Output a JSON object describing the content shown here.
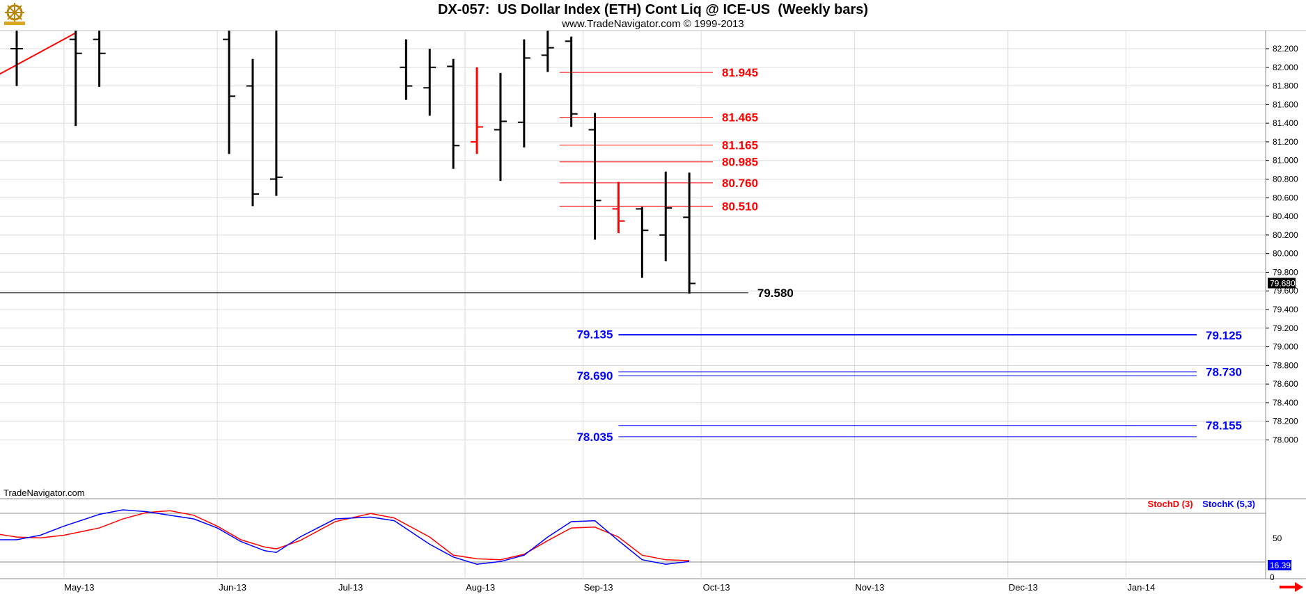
{
  "header": {
    "title": "DX-057:  US Dollar Index (ETH) Cont Liq @ ICE-US  (Weekly bars)",
    "subtitle": "www.TradeNavigator.com © 1999-2013",
    "watermark": "TradeNavigator.com"
  },
  "icons": {
    "logo": "ship-wheel-logo-icon",
    "scroll": "right-arrow-icon"
  },
  "colors": {
    "bar_up": "#000000",
    "bar_highlight": "#ff0000",
    "resistance": "#ff0000",
    "support": "#0000ff",
    "trendline": "#ff0000",
    "stoch_d": "#ff0000",
    "stoch_k": "#0000ff",
    "grid": "#dcdcdc"
  },
  "chart_data": [
    {
      "type": "ohlc",
      "title": "DX-057:  US Dollar Index (ETH) Cont Liq @ ICE-US  (Weekly bars)",
      "x_tick_labels": [
        "May-13",
        "Jun-13",
        "Jul-13",
        "Aug-13",
        "Sep-13",
        "Oct-13",
        "Nov-13",
        "Dec-13",
        "Jan-14"
      ],
      "x_tick_weeks": [
        4,
        17,
        27,
        38,
        48,
        58,
        71,
        84,
        94
      ],
      "y_ticks": [
        78.0,
        78.2,
        78.4,
        78.6,
        78.8,
        79.0,
        79.2,
        79.4,
        79.6,
        79.8,
        80.0,
        80.2,
        80.4,
        80.6,
        80.8,
        81.0,
        81.2,
        81.4,
        81.6,
        81.8,
        82.0,
        82.2
      ],
      "y_tick_labels": [
        "78.000",
        "78.200",
        "78.400",
        "78.600",
        "78.800",
        "79.000",
        "79.200",
        "79.400",
        "79.600",
        "79.800",
        "80.000",
        "80.200",
        "80.400",
        "80.600",
        "80.800",
        "81.000",
        "81.200",
        "81.400",
        "81.600",
        "81.800",
        "82.000",
        "82.200"
      ],
      "ylim": [
        77.9,
        82.3
      ],
      "last_price": "79.680",
      "bars": [
        {
          "week": 0,
          "open": 82.2,
          "high": 82.4,
          "low": 81.8,
          "close": 82.2,
          "color": "black"
        },
        {
          "week": 5,
          "open": 82.3,
          "high": 82.5,
          "low": 81.37,
          "close": 82.15,
          "color": "black"
        },
        {
          "week": 7,
          "open": 82.3,
          "high": 82.45,
          "low": 81.79,
          "close": 82.15,
          "color": "black"
        },
        {
          "week": 18,
          "open": 82.3,
          "high": 82.4,
          "low": 81.07,
          "close": 81.69,
          "color": "black"
        },
        {
          "week": 20,
          "open": 81.8,
          "high": 82.09,
          "low": 80.51,
          "close": 80.64,
          "color": "black"
        },
        {
          "week": 22,
          "open": 80.8,
          "high": 82.4,
          "low": 80.62,
          "close": 80.82,
          "color": "black"
        },
        {
          "week": 33,
          "open": 82.0,
          "high": 82.3,
          "low": 81.65,
          "close": 81.8,
          "color": "black"
        },
        {
          "week": 35,
          "open": 81.78,
          "high": 82.2,
          "low": 81.48,
          "close": 82.0,
          "color": "black"
        },
        {
          "week": 37,
          "open": 82.01,
          "high": 82.09,
          "low": 80.91,
          "close": 81.16,
          "color": "black"
        },
        {
          "week": 39,
          "open": 81.2,
          "high": 82.0,
          "low": 81.07,
          "close": 81.36,
          "color": "red"
        },
        {
          "week": 41,
          "open": 81.33,
          "high": 81.94,
          "low": 80.78,
          "close": 81.42,
          "color": "black"
        },
        {
          "week": 43,
          "open": 81.41,
          "high": 82.3,
          "low": 81.14,
          "close": 82.1,
          "color": "black"
        },
        {
          "week": 45,
          "open": 82.13,
          "high": 82.4,
          "low": 81.95,
          "close": 82.21,
          "color": "black"
        },
        {
          "week": 47,
          "open": 82.28,
          "high": 82.33,
          "low": 81.36,
          "close": 81.5,
          "color": "black"
        },
        {
          "week": 49,
          "open": 81.33,
          "high": 81.51,
          "low": 80.15,
          "close": 80.57,
          "color": "black"
        },
        {
          "week": 51,
          "open": 80.48,
          "high": 80.77,
          "low": 80.22,
          "close": 80.35,
          "color": "red"
        },
        {
          "week": 53,
          "open": 80.48,
          "high": 80.5,
          "low": 79.74,
          "close": 80.25,
          "color": "black"
        },
        {
          "week": 55,
          "open": 80.2,
          "high": 80.88,
          "low": 79.92,
          "close": 80.49,
          "color": "black"
        },
        {
          "week": 57,
          "open": 80.39,
          "high": 80.87,
          "low": 79.57,
          "close": 79.68,
          "color": "black"
        }
      ],
      "trendline": {
        "from": {
          "week": -5.2,
          "price": 81.67
        },
        "to": {
          "week": 5,
          "price": 82.37
        }
      },
      "levels": [
        {
          "price": 81.945,
          "label": "81.945",
          "color": "red",
          "from_week": 46,
          "to_week": 59
        },
        {
          "price": 81.465,
          "label": "81.465",
          "color": "red",
          "from_week": 46,
          "to_week": 59
        },
        {
          "price": 81.165,
          "label": "81.165",
          "color": "red",
          "from_week": 46,
          "to_week": 59
        },
        {
          "price": 80.985,
          "label": "80.985",
          "color": "red",
          "from_week": 46,
          "to_week": 59
        },
        {
          "price": 80.76,
          "label": "80.760",
          "color": "red",
          "from_week": 46,
          "to_week": 59
        },
        {
          "price": 80.51,
          "label": "80.510",
          "color": "red",
          "from_week": 46,
          "to_week": 59
        },
        {
          "price": 79.58,
          "label": "79.580",
          "color": "black",
          "from_week": -5.2,
          "to_week": 62
        }
      ],
      "support_pairs": [
        {
          "left_price": 79.135,
          "left_label": "79.135",
          "right_price": 79.125,
          "right_label": "79.125"
        },
        {
          "left_price": 78.69,
          "left_label": "78.690",
          "right_price": 78.73,
          "right_label": "78.730"
        },
        {
          "left_price": 78.035,
          "left_label": "78.035",
          "right_price": 78.155,
          "right_label": "78.155"
        }
      ],
      "support_from_week": 51,
      "support_to_week": 100
    },
    {
      "type": "line",
      "legend": [
        "StochD (3)",
        "StochK (5,3)"
      ],
      "y_tick_labels": [
        "50",
        "0"
      ],
      "last_value": "16.39",
      "series": [
        {
          "name": "StochD (3)",
          "color": "red",
          "x": [
            -4,
            -2,
            0,
            2,
            4,
            7,
            9,
            11,
            13,
            15,
            17,
            19,
            21,
            22,
            24,
            27,
            30,
            32,
            35,
            37,
            39,
            41,
            43,
            45,
            47,
            49,
            51,
            53,
            55,
            57
          ],
          "y": [
            53,
            44,
            40,
            39,
            42,
            50,
            60,
            67,
            69,
            64,
            52,
            37,
            29,
            27,
            36,
            57,
            66,
            61,
            40,
            20,
            16,
            15,
            21,
            36,
            50,
            51,
            40,
            20,
            15,
            14
          ]
        },
        {
          "name": "StochK (5,3)",
          "color": "blue",
          "x": [
            -4,
            -2,
            0,
            2,
            4,
            7,
            9,
            11,
            13,
            15,
            17,
            19,
            21,
            22,
            24,
            27,
            30,
            32,
            35,
            37,
            39,
            41,
            43,
            45,
            47,
            49,
            51,
            53,
            55,
            57
          ],
          "y": [
            38,
            37,
            37,
            42,
            52,
            65,
            70,
            68,
            64,
            60,
            50,
            35,
            25,
            23,
            40,
            60,
            62,
            58,
            32,
            18,
            10,
            13,
            20,
            40,
            57,
            58,
            36,
            15,
            10,
            13
          ]
        }
      ],
      "ylim": [
        -18,
        98
      ]
    }
  ]
}
